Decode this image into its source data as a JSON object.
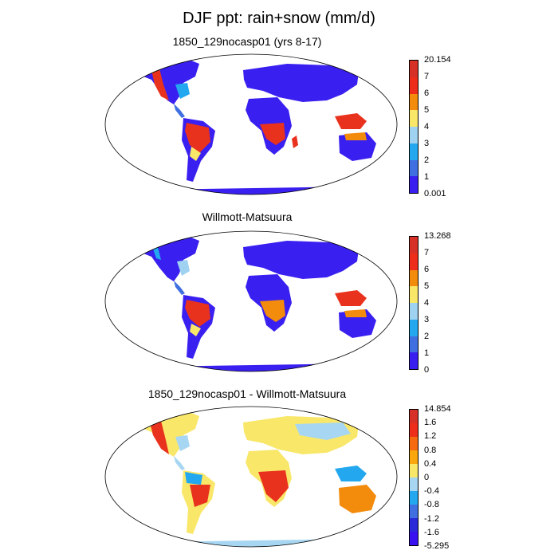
{
  "main_title": "DJF ppt: rain+snow (mm/d)",
  "panels": [
    {
      "title": "1850_129nocasp01 (yrs 8-17)",
      "colorbar": {
        "labels": [
          "20.154",
          "7",
          "6",
          "5",
          "4",
          "3",
          "2",
          "1",
          "0.001"
        ],
        "colors": [
          "#d73027",
          "#ee2e1a",
          "#f38b0c",
          "#f9e76a",
          "#9fd1f1",
          "#23a8f0",
          "#3f6fe0",
          "#3a20f0"
        ]
      }
    },
    {
      "title": "Willmott-Matsuura",
      "colorbar": {
        "labels": [
          "13.268",
          "7",
          "6",
          "5",
          "4",
          "3",
          "2",
          "1",
          "0"
        ],
        "colors": [
          "#d73027",
          "#ee2e1a",
          "#f38b0c",
          "#f9e76a",
          "#9fd1f1",
          "#23a8f0",
          "#3f6fe0",
          "#3a20f0"
        ]
      }
    },
    {
      "title": "1850_129nocasp01 - Willmott-Matsuura",
      "colorbar": {
        "labels": [
          "14.854",
          "1.6",
          "1.2",
          "0.8",
          "0.4",
          "0",
          "-0.4",
          "-0.8",
          "-1.2",
          "-1.6",
          "-5.295"
        ],
        "colors": [
          "#d73027",
          "#ee2e1a",
          "#f56a0e",
          "#f9a70c",
          "#f9e76a",
          "#a7d6f2",
          "#23a8f0",
          "#3f6fe0",
          "#2a2ad8",
          "#3a10f0"
        ]
      }
    }
  ]
}
